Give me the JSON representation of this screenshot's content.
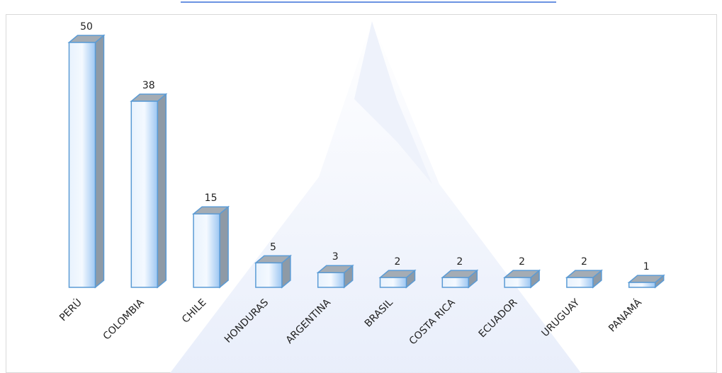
{
  "chart_data": {
    "type": "bar",
    "categories": [
      "PERÚ",
      "COLOMBIA",
      "CHILE",
      "HONDURAS",
      "ARGENTINA",
      "BRASIL",
      "COSTA RICA",
      "ECUADOR",
      "URUGUAY",
      "PANAMÁ"
    ],
    "values": [
      50,
      38,
      15,
      5,
      3,
      2,
      2,
      2,
      2,
      1
    ],
    "color": "#5b9bd5"
  }
}
